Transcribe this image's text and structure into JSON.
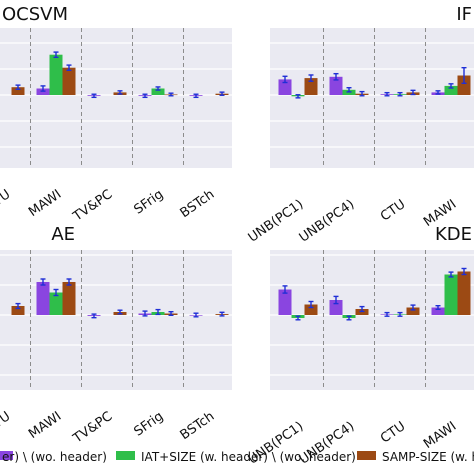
{
  "colors": {
    "plot_bg": "#eaeaf2",
    "grid": "#ffffff",
    "divider": "#8c8c8c",
    "err": "#1f2fd6"
  },
  "chart_data": [
    {
      "type": "bar",
      "title": "OCSVM",
      "title_align": "left",
      "categories": [
        "CTU",
        "MAWI",
        "TV&PC",
        "SFrig",
        "BSTch"
      ],
      "series_values": [
        [
          0.1,
          0.25,
          -0.03,
          -0.03,
          -0.03
        ],
        [
          null,
          1.55,
          null,
          0.25,
          null
        ],
        [
          0.3,
          1.05,
          0.1,
          0.02,
          0.05
        ]
      ],
      "errors": [
        [
          0.08,
          0.1,
          0.06,
          0.06,
          0.06
        ],
        [
          null,
          0.1,
          null,
          0.06,
          null
        ],
        [
          0.08,
          0.1,
          0.06,
          0.05,
          0.06
        ]
      ]
    },
    {
      "type": "bar",
      "title": "IF",
      "title_align": "right",
      "categories": [
        "UNB(PC1)",
        "UNB(PC4)",
        "CTU",
        "MAWI"
      ],
      "series_values": [
        [
          0.6,
          0.7,
          0.03,
          0.1
        ],
        [
          -0.05,
          0.2,
          0.03,
          0.35
        ],
        [
          0.65,
          0.05,
          0.1,
          0.75
        ]
      ],
      "errors": [
        [
          0.12,
          0.12,
          0.06,
          0.06
        ],
        [
          0.06,
          0.08,
          0.06,
          0.08
        ],
        [
          0.12,
          0.08,
          0.08,
          0.3
        ]
      ]
    },
    {
      "type": "bar",
      "title": "AE",
      "title_align": "right",
      "categories": [
        "CTU",
        "MAWI",
        "TV&PC",
        "SFrig",
        "BSTch"
      ],
      "series_values": [
        [
          0.15,
          1.1,
          -0.03,
          0.05,
          0.0
        ],
        [
          null,
          0.75,
          null,
          0.1,
          null
        ],
        [
          0.3,
          1.1,
          0.1,
          0.05,
          0.03
        ]
      ],
      "errors": [
        [
          0.06,
          0.1,
          0.06,
          0.08,
          0.06
        ],
        [
          null,
          0.1,
          null,
          0.08,
          null
        ],
        [
          0.08,
          0.1,
          0.06,
          0.06,
          0.06
        ]
      ]
    },
    {
      "type": "bar",
      "title": "KDE",
      "title_align": "right",
      "categories": [
        "UNB(PC1)",
        "UNB(PC4)",
        "CTU",
        "MAWI"
      ],
      "series_values": [
        [
          0.85,
          0.5,
          0.02,
          0.25
        ],
        [
          -0.1,
          -0.1,
          0.02,
          1.35
        ],
        [
          0.35,
          0.2,
          0.25,
          1.45
        ]
      ],
      "errors": [
        [
          0.12,
          0.12,
          0.06,
          0.06
        ],
        [
          0.06,
          0.06,
          0.06,
          0.08
        ],
        [
          0.1,
          0.08,
          0.08,
          0.1
        ]
      ]
    }
  ],
  "legend": [
    {
      "label": "er) \\ (wo. header)",
      "color": "#8a45e0"
    },
    {
      "label": "IAT+SIZE (w. header) \\ (wo. header)",
      "color": "#2fbe4a"
    },
    {
      "label": "SAMP-SIZE (w. header",
      "color": "#9c4a14"
    }
  ]
}
